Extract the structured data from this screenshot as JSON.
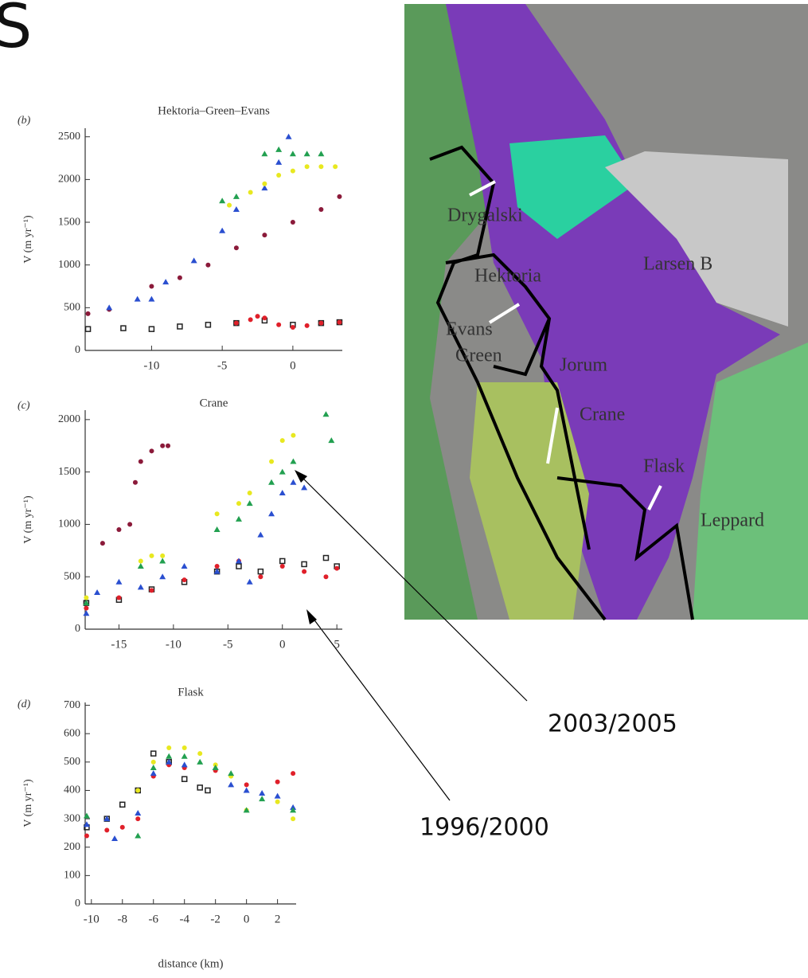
{
  "slide_title": "S",
  "chart_data": [
    {
      "type": "scatter",
      "panel": "(b)",
      "title": "Hektoria–Green–Evans",
      "y_label": "V (m yr⁻¹)",
      "xlim": [
        -14.7,
        3.5
      ],
      "ylim": [
        0,
        2600
      ],
      "xticks": [
        -10,
        -5,
        0
      ],
      "yticks": [
        0,
        500,
        1000,
        1500,
        2000,
        2500
      ],
      "series": [
        {
          "color": "#222222",
          "marker": "square",
          "x": [
            -14.5,
            -12,
            -10,
            -8,
            -6,
            -4,
            -2,
            0,
            2,
            3.3
          ],
          "values": [
            250,
            260,
            250,
            280,
            300,
            320,
            350,
            300,
            320,
            330
          ]
        },
        {
          "color": "#e0202a",
          "marker": "circle",
          "x": [
            -4,
            -3,
            -2.5,
            -2,
            -1,
            0,
            1,
            2,
            3.3
          ],
          "values": [
            320,
            360,
            400,
            380,
            300,
            270,
            290,
            320,
            330
          ]
        },
        {
          "color": "#8b1a3a",
          "marker": "circle",
          "x": [
            -14.5,
            -13,
            -10,
            -8,
            -6,
            -4,
            -2,
            0,
            2,
            3.3
          ],
          "values": [
            430,
            480,
            750,
            850,
            1000,
            1200,
            1350,
            1500,
            1650,
            1800
          ]
        },
        {
          "color": "#2a4fd0",
          "marker": "triangle",
          "x": [
            -13,
            -11,
            -10,
            -9,
            -7,
            -5,
            -4,
            -2,
            -1,
            -0.3
          ],
          "values": [
            500,
            600,
            600,
            800,
            1050,
            1400,
            1650,
            1900,
            2200,
            2500
          ]
        },
        {
          "color": "#e8e820",
          "marker": "circle",
          "x": [
            -4.5,
            -3,
            -2,
            -1,
            0,
            1,
            2,
            3
          ],
          "values": [
            1700,
            1850,
            1950,
            2050,
            2100,
            2150,
            2150,
            2150
          ]
        },
        {
          "color": "#22a050",
          "marker": "triangle",
          "x": [
            -5,
            -4,
            -2,
            -1,
            0,
            1,
            2
          ],
          "values": [
            1750,
            1800,
            2300,
            2350,
            2300,
            2300,
            2300
          ]
        }
      ]
    },
    {
      "type": "scatter",
      "panel": "(c)",
      "title": "Crane",
      "y_label": "V (m yr⁻¹)",
      "xlim": [
        -18.1,
        5.5
      ],
      "ylim": [
        0,
        2090
      ],
      "xticks": [
        -15,
        -10,
        -5,
        0,
        5
      ],
      "yticks": [
        0,
        500,
        1000,
        1500,
        2000
      ],
      "series": [
        {
          "color": "#222222",
          "marker": "square",
          "x": [
            -18,
            -15,
            -12,
            -9,
            -6,
            -4,
            -2,
            0,
            2,
            4,
            5
          ],
          "values": [
            250,
            280,
            380,
            450,
            550,
            600,
            550,
            650,
            620,
            680,
            600
          ]
        },
        {
          "color": "#e0202a",
          "marker": "circle",
          "x": [
            -18,
            -15,
            -12,
            -9,
            -6,
            -4,
            -2,
            0,
            2,
            4,
            5
          ],
          "values": [
            200,
            300,
            370,
            470,
            600,
            650,
            500,
            600,
            550,
            500,
            580
          ]
        },
        {
          "color": "#8b1a3a",
          "marker": "circle",
          "x": [
            -16.5,
            -15,
            -14,
            -13.5,
            -13,
            -12,
            -11,
            -10.5
          ],
          "values": [
            820,
            950,
            1000,
            1400,
            1600,
            1700,
            1750,
            1750
          ]
        },
        {
          "color": "#2a4fd0",
          "marker": "triangle",
          "x": [
            -18,
            -17,
            -15,
            -13,
            -11,
            -9,
            -6,
            -4,
            -3,
            -2,
            -1,
            0,
            1,
            2
          ],
          "values": [
            150,
            350,
            450,
            400,
            500,
            600,
            550,
            650,
            450,
            900,
            1100,
            1300,
            1400,
            1350
          ]
        },
        {
          "color": "#e8e820",
          "marker": "circle",
          "x": [
            -18,
            -13,
            -12,
            -11,
            -6,
            -4,
            -3,
            -1,
            0,
            1
          ],
          "values": [
            300,
            650,
            700,
            700,
            1100,
            1200,
            1300,
            1600,
            1800,
            1850
          ]
        },
        {
          "color": "#22a050",
          "marker": "triangle",
          "x": [
            -18,
            -13,
            -11,
            -6,
            -4,
            -3,
            -1,
            0,
            1,
            4,
            4.5
          ],
          "values": [
            250,
            600,
            650,
            950,
            1050,
            1200,
            1400,
            1500,
            1600,
            2050,
            1800
          ]
        }
      ]
    },
    {
      "type": "scatter",
      "panel": "(d)",
      "title": "Flask",
      "y_label": "V (m yr⁻¹)",
      "x_label": "distance (km)",
      "xlim": [
        -10.4,
        3.2
      ],
      "ylim": [
        0,
        710
      ],
      "xticks": [
        -10,
        -8,
        -6,
        -4,
        -2,
        0,
        2
      ],
      "yticks": [
        0,
        100,
        200,
        300,
        400,
        500,
        600,
        700
      ],
      "series": [
        {
          "color": "#222222",
          "marker": "square",
          "x": [
            -10.3,
            -9,
            -8,
            -7,
            -6,
            -5,
            -4,
            -3,
            -2.5
          ],
          "values": [
            270,
            300,
            350,
            400,
            530,
            500,
            440,
            410,
            400
          ]
        },
        {
          "color": "#e0202a",
          "marker": "circle",
          "x": [
            -10.3,
            -9,
            -8,
            -7,
            -6,
            -5,
            -4,
            -2,
            0,
            2,
            3
          ],
          "values": [
            240,
            260,
            270,
            300,
            450,
            490,
            480,
            470,
            420,
            430,
            460
          ]
        },
        {
          "color": "#2a4fd0",
          "marker": "triangle",
          "x": [
            -10.3,
            -9,
            -8.5,
            -7,
            -6,
            -5,
            -4,
            -2,
            -1,
            0,
            1,
            2,
            3
          ],
          "values": [
            280,
            300,
            230,
            320,
            460,
            500,
            490,
            480,
            420,
            400,
            390,
            380,
            340
          ]
        },
        {
          "color": "#e8e820",
          "marker": "circle",
          "x": [
            -7,
            -6,
            -5,
            -4,
            -3,
            -2,
            -1,
            0,
            2,
            3
          ],
          "values": [
            400,
            500,
            550,
            550,
            530,
            490,
            450,
            330,
            360,
            300
          ]
        },
        {
          "color": "#22a050",
          "marker": "triangle",
          "x": [
            -10.3,
            -7,
            -6,
            -5,
            -4,
            -3,
            -2,
            -1,
            0,
            1,
            3
          ],
          "values": [
            310,
            240,
            480,
            520,
            520,
            500,
            480,
            460,
            330,
            370,
            330
          ]
        }
      ]
    }
  ],
  "map": {
    "labels": [
      "Drygalski",
      "Hektoria",
      "Larsen B",
      "Evans",
      "Green",
      "Jorum",
      "Crane",
      "Flask",
      "Leppard"
    ]
  },
  "annotations": [
    "2003/2005",
    "1996/2000"
  ]
}
